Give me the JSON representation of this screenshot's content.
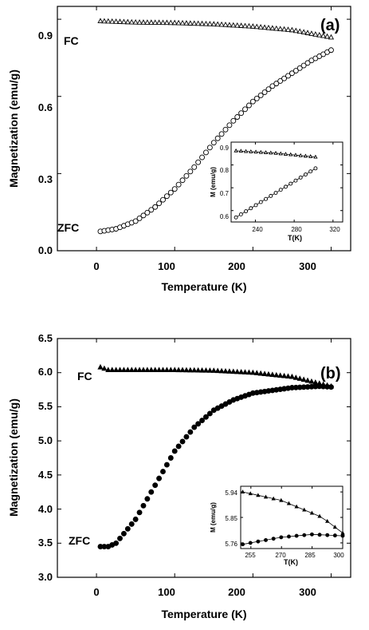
{
  "chart_data": [
    {
      "type": "scatter",
      "panel_label": "(a)",
      "xlabel": "Temperature (K)",
      "ylabel": "Magnetization (emu/g)",
      "xlim": [
        -50,
        325
      ],
      "ylim": [
        0.0,
        0.95
      ],
      "xticks": [
        "0",
        "100",
        "200",
        "300"
      ],
      "yticks": [
        "0.0",
        "0.3",
        "0.6",
        "0.9"
      ],
      "grid": false,
      "legend": "none",
      "annotations": [
        "FC",
        "ZFC"
      ],
      "series": [
        {
          "label": "FC",
          "marker": "open-triangle",
          "x_start": 5,
          "x_end": 300,
          "n": 60,
          "y_knots": [
            [
              5,
              0.893
            ],
            [
              50,
              0.888
            ],
            [
              100,
              0.886
            ],
            [
              150,
              0.881
            ],
            [
              200,
              0.872
            ],
            [
              250,
              0.858
            ],
            [
              300,
              0.83
            ]
          ]
        },
        {
          "label": "ZFC",
          "marker": "open-circle",
          "x_start": 5,
          "x_end": 300,
          "n": 60,
          "y_knots": [
            [
              5,
              0.075
            ],
            [
              25,
              0.085
            ],
            [
              50,
              0.115
            ],
            [
              75,
              0.17
            ],
            [
              100,
              0.24
            ],
            [
              125,
              0.325
            ],
            [
              150,
              0.42
            ],
            [
              175,
              0.505
            ],
            [
              200,
              0.58
            ],
            [
              225,
              0.64
            ],
            [
              250,
              0.69
            ],
            [
              275,
              0.74
            ],
            [
              300,
              0.78
            ]
          ]
        }
      ],
      "inset": {
        "xlabel": "T(K)",
        "ylabel": "M (emu/g)",
        "xlim": [
          215,
          330
        ],
        "ylim": [
          0.55,
          0.9
        ],
        "xticks": [
          "240",
          "280",
          "320"
        ],
        "yticks": [
          "0.6",
          "0.7",
          "0.8",
          "0.9"
        ],
        "series": [
          {
            "marker": "open-triangle",
            "x_start": 220,
            "x_end": 302,
            "n": 17,
            "y_knots": [
              [
                220,
                0.862
              ],
              [
                260,
                0.852
              ],
              [
                302,
                0.835
              ]
            ]
          },
          {
            "marker": "open-circle",
            "x_start": 220,
            "x_end": 302,
            "n": 17,
            "y_knots": [
              [
                220,
                0.57
              ],
              [
                260,
                0.675
              ],
              [
                302,
                0.785
              ]
            ]
          }
        ]
      }
    },
    {
      "type": "scatter",
      "panel_label": "(b)",
      "xlabel": "Temperature (K)",
      "ylabel": "Magnetization (emu/g)",
      "xlim": [
        -50,
        325
      ],
      "ylim": [
        3.0,
        6.5
      ],
      "xticks": [
        "0",
        "100",
        "200",
        "300"
      ],
      "yticks": [
        "3.0",
        "3.5",
        "4.0",
        "4.5",
        "5.0",
        "5.5",
        "6.0",
        "6.5"
      ],
      "grid": false,
      "legend": "none",
      "annotations": [
        "FC",
        "ZFC"
      ],
      "series": [
        {
          "label": "FC",
          "marker": "filled-triangle",
          "x_start": 5,
          "x_end": 300,
          "n": 60,
          "y_knots": [
            [
              5,
              6.08
            ],
            [
              15,
              6.04
            ],
            [
              50,
              6.04
            ],
            [
              100,
              6.04
            ],
            [
              150,
              6.03
            ],
            [
              200,
              6.0
            ],
            [
              250,
              5.94
            ],
            [
              300,
              5.8
            ]
          ]
        },
        {
          "label": "ZFC",
          "marker": "filled-circle",
          "x_start": 5,
          "x_end": 300,
          "n": 60,
          "y_knots": [
            [
              5,
              3.45
            ],
            [
              15,
              3.45
            ],
            [
              25,
              3.5
            ],
            [
              50,
              3.85
            ],
            [
              75,
              4.35
            ],
            [
              100,
              4.85
            ],
            [
              125,
              5.2
            ],
            [
              150,
              5.45
            ],
            [
              175,
              5.6
            ],
            [
              200,
              5.7
            ],
            [
              250,
              5.78
            ],
            [
              285,
              5.8
            ],
            [
              300,
              5.79
            ]
          ]
        }
      ],
      "inset": {
        "xlabel": "T(K)",
        "ylabel": "M (emu/g)",
        "xlim": [
          250,
          300
        ],
        "ylim": [
          5.74,
          5.96
        ],
        "xticks": [
          "255",
          "270",
          "285",
          "300"
        ],
        "yticks": [
          "5.76",
          "5.85",
          "5.94"
        ],
        "series": [
          {
            "marker": "filled-triangle",
            "x_start": 251,
            "x_end": 300,
            "n": 14,
            "y_knots": [
              [
                251,
                5.94
              ],
              [
                270,
                5.91
              ],
              [
                290,
                5.85
              ],
              [
                300,
                5.795
              ]
            ]
          },
          {
            "marker": "filled-circle",
            "x_start": 251,
            "x_end": 300,
            "n": 14,
            "y_knots": [
              [
                251,
                5.755
              ],
              [
                270,
                5.78
              ],
              [
                285,
                5.79
              ],
              [
                300,
                5.785
              ]
            ]
          }
        ]
      }
    }
  ]
}
